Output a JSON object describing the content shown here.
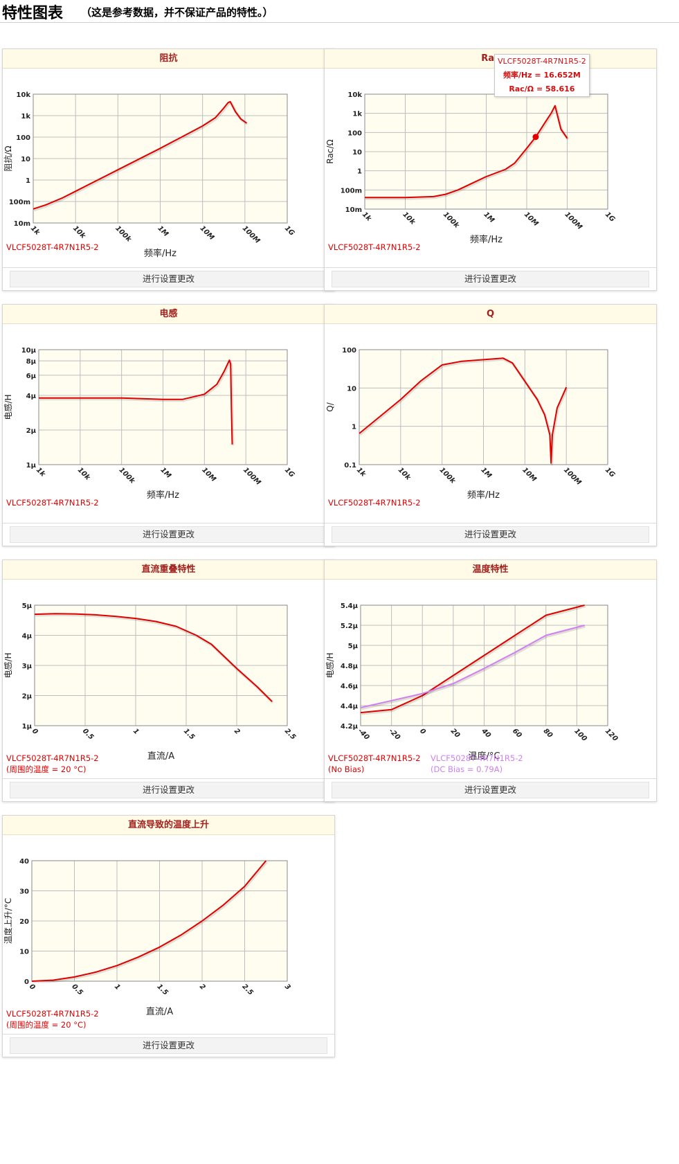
{
  "header": {
    "title": "特性图表",
    "subtitle": "（这是参考数据，并不保证产品的特性。）"
  },
  "settings_label": "进行设置更改",
  "colors": {
    "red": "#e00000",
    "violet": "#d080f0",
    "plot_bg": "#fffdf0",
    "grid": "#bdbdbd"
  },
  "charts": [
    {
      "title": "阻抗",
      "xlabel": "频率/Hz",
      "ylabel": "阻抗/Ω",
      "legend": [
        {
          "text": "VLCF5028T-4R7N1R5-2",
          "color": "#e00000"
        }
      ],
      "chart_data": {
        "type": "line",
        "xscale": "log",
        "yscale": "log",
        "xlim": [
          1000,
          1000000000
        ],
        "ylim": [
          0.01,
          10000
        ],
        "xticks": [
          "1k",
          "10k",
          "100k",
          "1M",
          "10M",
          "100M",
          "1G"
        ],
        "yticks": [
          "10m",
          "100m",
          "1",
          "10",
          "100",
          "1k",
          "10k"
        ],
        "series": [
          {
            "name": "VLCF5028T-4R7N1R5-2",
            "color": "#e00000",
            "x": [
              1000,
              2000,
              5000,
              10000,
              100000,
              1000000,
              10000000,
              20000000,
              30000000,
              40000000,
              45000000,
              60000000,
              80000000,
              110000000
            ],
            "y": [
              0.045,
              0.07,
              0.15,
              0.3,
              3,
              30,
              330,
              800,
              2000,
              4000,
              4500,
              1500,
              700,
              450
            ]
          }
        ]
      }
    },
    {
      "title": "Rac",
      "xlabel": "频率/Hz",
      "ylabel": "Rac/Ω",
      "legend": [
        {
          "text": "VLCF5028T-4R7N1R5-2",
          "color": "#e00000"
        }
      ],
      "tooltip": {
        "series": "VLCF5028T-4R7N1R5-2",
        "freq": "频率/Hz = 16.652M",
        "value": "Rac/Ω = 58.616",
        "x": 16652000,
        "y": 58.616
      },
      "chart_data": {
        "type": "line",
        "xscale": "log",
        "yscale": "log",
        "xlim": [
          1000,
          1000000000
        ],
        "ylim": [
          0.01,
          10000
        ],
        "xticks": [
          "1k",
          "10k",
          "100k",
          "1M",
          "10M",
          "100M",
          "1G"
        ],
        "yticks": [
          "10m",
          "100m",
          "1",
          "10",
          "100",
          "1k",
          "10k"
        ],
        "series": [
          {
            "name": "VLCF5028T-4R7N1R5-2",
            "color": "#e00000",
            "x": [
              1000,
              10000,
              50000,
              100000,
              200000,
              500000,
              1000000,
              3000000,
              5000000,
              10000000,
              16652000,
              30000000,
              40000000,
              50000000,
              70000000,
              100000000
            ],
            "y": [
              0.04,
              0.04,
              0.045,
              0.06,
              0.1,
              0.25,
              0.5,
              1.2,
              2.5,
              15,
              58.616,
              400,
              1000,
              2500,
              150,
              50
            ]
          }
        ]
      }
    },
    {
      "title": "电感",
      "xlabel": "频率/Hz",
      "ylabel": "电感/H",
      "legend": [
        {
          "text": "VLCF5028T-4R7N1R5-2",
          "color": "#e00000"
        }
      ],
      "chart_data": {
        "type": "line",
        "xscale": "log",
        "yscale": "log",
        "xlim": [
          1000,
          1000000000
        ],
        "ylim": [
          1e-06,
          1e-05
        ],
        "xticks": [
          "1k",
          "10k",
          "100k",
          "1M",
          "10M",
          "100M",
          "1G"
        ],
        "ytick_values": [
          1e-06,
          2e-06,
          4e-06,
          6e-06,
          8e-06,
          1e-05
        ],
        "yticks": [
          "1μ",
          "2μ",
          "4μ",
          "6μ",
          "8μ",
          "10μ"
        ],
        "series": [
          {
            "name": "VLCF5028T-4R7N1R5-2",
            "color": "#e00000",
            "x": [
              1000,
              10000,
              100000,
              1000000,
              3000000,
              10000000,
              20000000,
              30000000,
              40000000,
              43000000,
              45000000,
              47000000
            ],
            "y": [
              3.8e-06,
              3.8e-06,
              3.8e-06,
              3.7e-06,
              3.7e-06,
              4.1e-06,
              5e-06,
              6.5e-06,
              8.1e-06,
              7.5e-06,
              3e-06,
              1.5e-06
            ]
          }
        ]
      }
    },
    {
      "title": "Q",
      "xlabel": "频率/Hz",
      "ylabel": "Q/",
      "legend": [
        {
          "text": "VLCF5028T-4R7N1R5-2",
          "color": "#e00000"
        }
      ],
      "chart_data": {
        "type": "line",
        "xscale": "log",
        "yscale": "log",
        "xlim": [
          1000,
          1000000000
        ],
        "ylim": [
          0.1,
          100
        ],
        "xticks": [
          "1k",
          "10k",
          "100k",
          "1M",
          "10M",
          "100M",
          "1G"
        ],
        "yticks": [
          "0.1",
          "1",
          "10",
          "100"
        ],
        "series": [
          {
            "name": "VLCF5028T-4R7N1R5-2",
            "color": "#e00000",
            "x": [
              1000,
              10000,
              30000,
              100000,
              300000,
              1000000,
              3000000,
              5000000,
              10000000,
              20000000,
              30000000,
              40000000,
              43000000,
              46000000,
              60000000,
              100000000
            ],
            "y": [
              0.65,
              5,
              15,
              40,
              50,
              55,
              60,
              45,
              15,
              5,
              2,
              0.6,
              0.11,
              0.6,
              3,
              10.5
            ]
          }
        ]
      }
    },
    {
      "title": "直流重叠特性",
      "xlabel": "直流/A",
      "ylabel": "电感/H",
      "legend": [
        {
          "text": "VLCF5028T-4R7N1R5-2(周围的温度 = 20 °C)",
          "color": "#e00000"
        }
      ],
      "chart_data": {
        "type": "line",
        "xscale": "linear",
        "yscale": "linear",
        "xlim": [
          0,
          2.5
        ],
        "ylim": [
          1e-06,
          5e-06
        ],
        "xticks": [
          "0",
          "0.5",
          "1",
          "1.5",
          "2",
          "2.5"
        ],
        "ytick_values": [
          1e-06,
          2e-06,
          3e-06,
          4e-06,
          5e-06
        ],
        "yticks": [
          "1μ",
          "2μ",
          "3μ",
          "4μ",
          "5μ"
        ],
        "series": [
          {
            "name": "VLCF5028T-4R7N1R5-2(周围的温度 = 20 °C)",
            "color": "#e00000",
            "x": [
              0,
              0.2,
              0.4,
              0.6,
              0.8,
              1.0,
              1.2,
              1.4,
              1.6,
              1.75,
              2.0,
              2.2,
              2.35
            ],
            "y": [
              4.7e-06,
              4.72e-06,
              4.71e-06,
              4.68e-06,
              4.63e-06,
              4.56e-06,
              4.46e-06,
              4.3e-06,
              4e-06,
              3.7e-06,
              2.9e-06,
              2.3e-06,
              1.8e-06
            ]
          }
        ]
      }
    },
    {
      "title": "温度特性",
      "xlabel": "温度/°C",
      "ylabel": "电感/H",
      "legend": [
        {
          "text": "VLCF5028T-4R7N1R5-2(No Bias)",
          "color": "#e00000"
        },
        {
          "text": "VLCF5028T-4R7N1R5-2(DC Bias = 0.79A)",
          "color": "#d080f0"
        }
      ],
      "chart_data": {
        "type": "line",
        "xscale": "linear",
        "yscale": "linear",
        "xlim": [
          -40,
          120
        ],
        "ylim": [
          4.2e-06,
          5.4e-06
        ],
        "xticks": [
          "-40",
          "-20",
          "0",
          "20",
          "40",
          "60",
          "80",
          "100",
          "120"
        ],
        "ytick_values": [
          4.2e-06,
          4.4e-06,
          4.6e-06,
          4.8e-06,
          5e-06,
          5.2e-06,
          5.4e-06
        ],
        "yticks": [
          "4.2μ",
          "4.4μ",
          "4.6μ",
          "4.8μ",
          "5μ",
          "5.2μ",
          "5.4μ"
        ],
        "series": [
          {
            "name": "VLCF5028T-4R7N1R5-2(No Bias)",
            "color": "#e00000",
            "x": [
              -40,
              -20,
              0,
              20,
              40,
              60,
              80,
              105
            ],
            "y": [
              4.33e-06,
              4.36e-06,
              4.5e-06,
              4.7e-06,
              4.9e-06,
              5.1e-06,
              5.3e-06,
              5.4e-06
            ]
          },
          {
            "name": "VLCF5028T-4R7N1R5-2(DC Bias = 0.79A)",
            "color": "#d080f0",
            "x": [
              -40,
              -20,
              0,
              20,
              40,
              60,
              80,
              105
            ],
            "y": [
              4.38e-06,
              4.45e-06,
              4.52e-06,
              4.62e-06,
              4.77e-06,
              4.93e-06,
              5.1e-06,
              5.2e-06
            ]
          }
        ]
      }
    },
    {
      "title": "直流导致的温度上升",
      "xlabel": "直流/A",
      "ylabel": "温度上升/°C",
      "legend": [
        {
          "text": "VLCF5028T-4R7N1R5-2(周围的温度 = 20 °C)",
          "color": "#e00000"
        }
      ],
      "chart_data": {
        "type": "line",
        "xscale": "linear",
        "yscale": "linear",
        "xlim": [
          0,
          3
        ],
        "ylim": [
          0,
          40
        ],
        "xticks": [
          "0",
          "0.5",
          "1",
          "1.5",
          "2",
          "2.5",
          "3"
        ],
        "ytick_values": [
          0,
          10,
          20,
          30,
          40
        ],
        "yticks": [
          "0",
          "10",
          "20",
          "30",
          "40"
        ],
        "series": [
          {
            "name": "VLCF5028T-4R7N1R5-2(周围的温度 = 20 °C)",
            "color": "#e00000",
            "x": [
              0,
              0.25,
              0.5,
              0.75,
              1,
              1.25,
              1.5,
              1.75,
              2,
              2.25,
              2.5,
              2.75
            ],
            "y": [
              0,
              0.35,
              1.4,
              3,
              5.2,
              8,
              11.3,
              15.3,
              20,
              25.3,
              31.5,
              40
            ]
          }
        ]
      }
    }
  ]
}
